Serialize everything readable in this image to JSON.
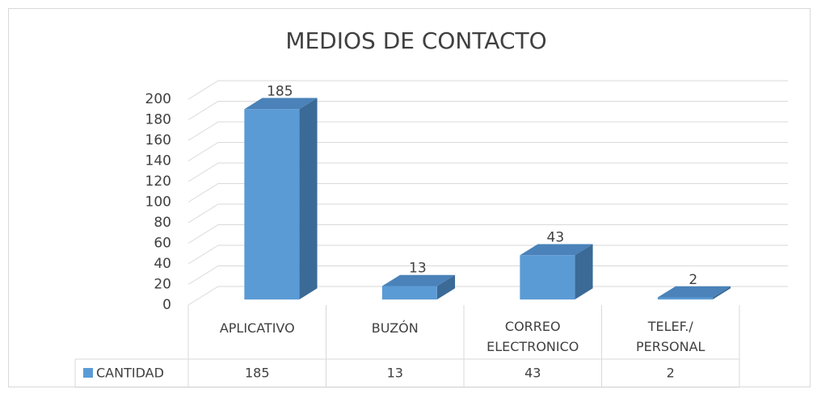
{
  "chart_data": {
    "type": "bar3d",
    "title": "MEDIOS DE CONTACTO",
    "categories": [
      "APLICATIVO",
      "BUZÓN",
      "CORREO ELECTRONICO",
      "TELEF./ PERSONAL"
    ],
    "series": [
      {
        "name": "CANTIDAD",
        "color": "#5b9bd5",
        "values": [
          185,
          13,
          43,
          2
        ]
      }
    ],
    "ylim": [
      0,
      200
    ],
    "yticks": [
      0,
      20,
      40,
      60,
      80,
      100,
      120,
      140,
      160,
      180,
      200
    ],
    "grid": true,
    "legend": "table"
  }
}
